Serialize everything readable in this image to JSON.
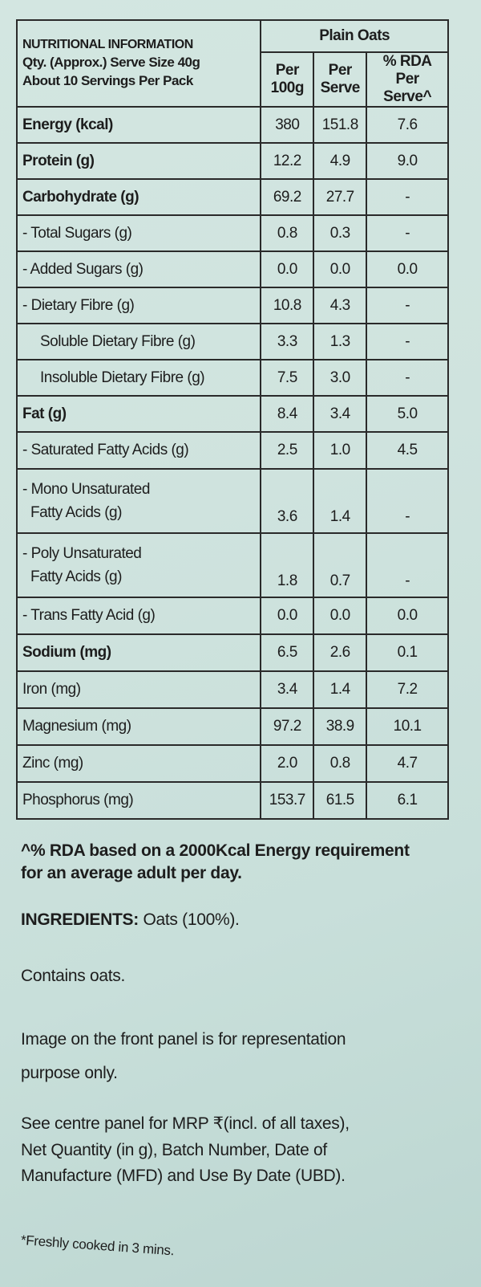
{
  "header": {
    "title": "NUTRITIONAL INFORMATION",
    "serve_size": "Qty. (Approx.) Serve Size 40g",
    "servings": "About 10 Servings Per Pack",
    "product": "Plain Oats",
    "col_per100_l1": "Per",
    "col_per100_l2": "100g",
    "col_serve_l1": "Per",
    "col_serve_l2": "Serve",
    "col_rda_l1": "% RDA",
    "col_rda_l2": "Per Serve^"
  },
  "rows": [
    {
      "name": "Energy (kcal)",
      "per100": "380",
      "serve": "151.8",
      "rda": "7.6"
    },
    {
      "name": "Protein (g)",
      "per100": "12.2",
      "serve": "4.9",
      "rda": "9.0"
    },
    {
      "name": "Carbohydrate (g)",
      "per100": "69.2",
      "serve": "27.7",
      "rda": "-"
    },
    {
      "name": "- Total Sugars (g)",
      "per100": "0.8",
      "serve": "0.3",
      "rda": "-"
    },
    {
      "name": "- Added Sugars (g)",
      "per100": "0.0",
      "serve": "0.0",
      "rda": "0.0"
    },
    {
      "name": "- Dietary Fibre (g)",
      "per100": "10.8",
      "serve": "4.3",
      "rda": "-"
    },
    {
      "name": "Soluble Dietary Fibre (g)",
      "per100": "3.3",
      "serve": "1.3",
      "rda": "-"
    },
    {
      "name": "Insoluble Dietary Fibre (g)",
      "per100": "7.5",
      "serve": "3.0",
      "rda": "-"
    },
    {
      "name": "Fat (g)",
      "per100": "8.4",
      "serve": "3.4",
      "rda": "5.0"
    },
    {
      "name": "- Saturated Fatty Acids (g)",
      "per100": "2.5",
      "serve": "1.0",
      "rda": "4.5"
    },
    {
      "name_l1": "- Mono Unsaturated",
      "name_l2": "Fatty Acids (g)",
      "per100": "3.6",
      "serve": "1.4",
      "rda": "-"
    },
    {
      "name_l1": "- Poly Unsaturated",
      "name_l2": "Fatty Acids (g)",
      "per100": "1.8",
      "serve": "0.7",
      "rda": "-"
    },
    {
      "name": "- Trans Fatty Acid (g)",
      "per100": "0.0",
      "serve": "0.0",
      "rda": "0.0"
    },
    {
      "name": "Sodium (mg)",
      "per100": "6.5",
      "serve": "2.6",
      "rda": "0.1"
    },
    {
      "name": "Iron (mg)",
      "per100": "3.4",
      "serve": "1.4",
      "rda": "7.2"
    },
    {
      "name": "Magnesium (mg)",
      "per100": "97.2",
      "serve": "38.9",
      "rda": "10.1"
    },
    {
      "name": "Zinc (mg)",
      "per100": "2.0",
      "serve": "0.8",
      "rda": "4.7"
    },
    {
      "name": "Phosphorus (mg)",
      "per100": "153.7",
      "serve": "61.5",
      "rda": "6.1"
    }
  ],
  "footnote": {
    "l1": "^% RDA based on a 2000Kcal Energy requirement",
    "l2": "for an average adult per day."
  },
  "ingredients": {
    "label": "INGREDIENTS:",
    "value": " Oats (100%)."
  },
  "contains": "Contains oats.",
  "image_note": {
    "l1": "Image on the front panel is for representation",
    "l2": "purpose only."
  },
  "see_centre": {
    "l1": "See centre panel for MRP ₹(incl. of all taxes),",
    "l2": "Net Quantity (in g), Batch Number, Date of",
    "l3": "Manufacture (MFD) and Use By Date (UBD)."
  },
  "fresh": "*Freshly cooked in 3 mins."
}
